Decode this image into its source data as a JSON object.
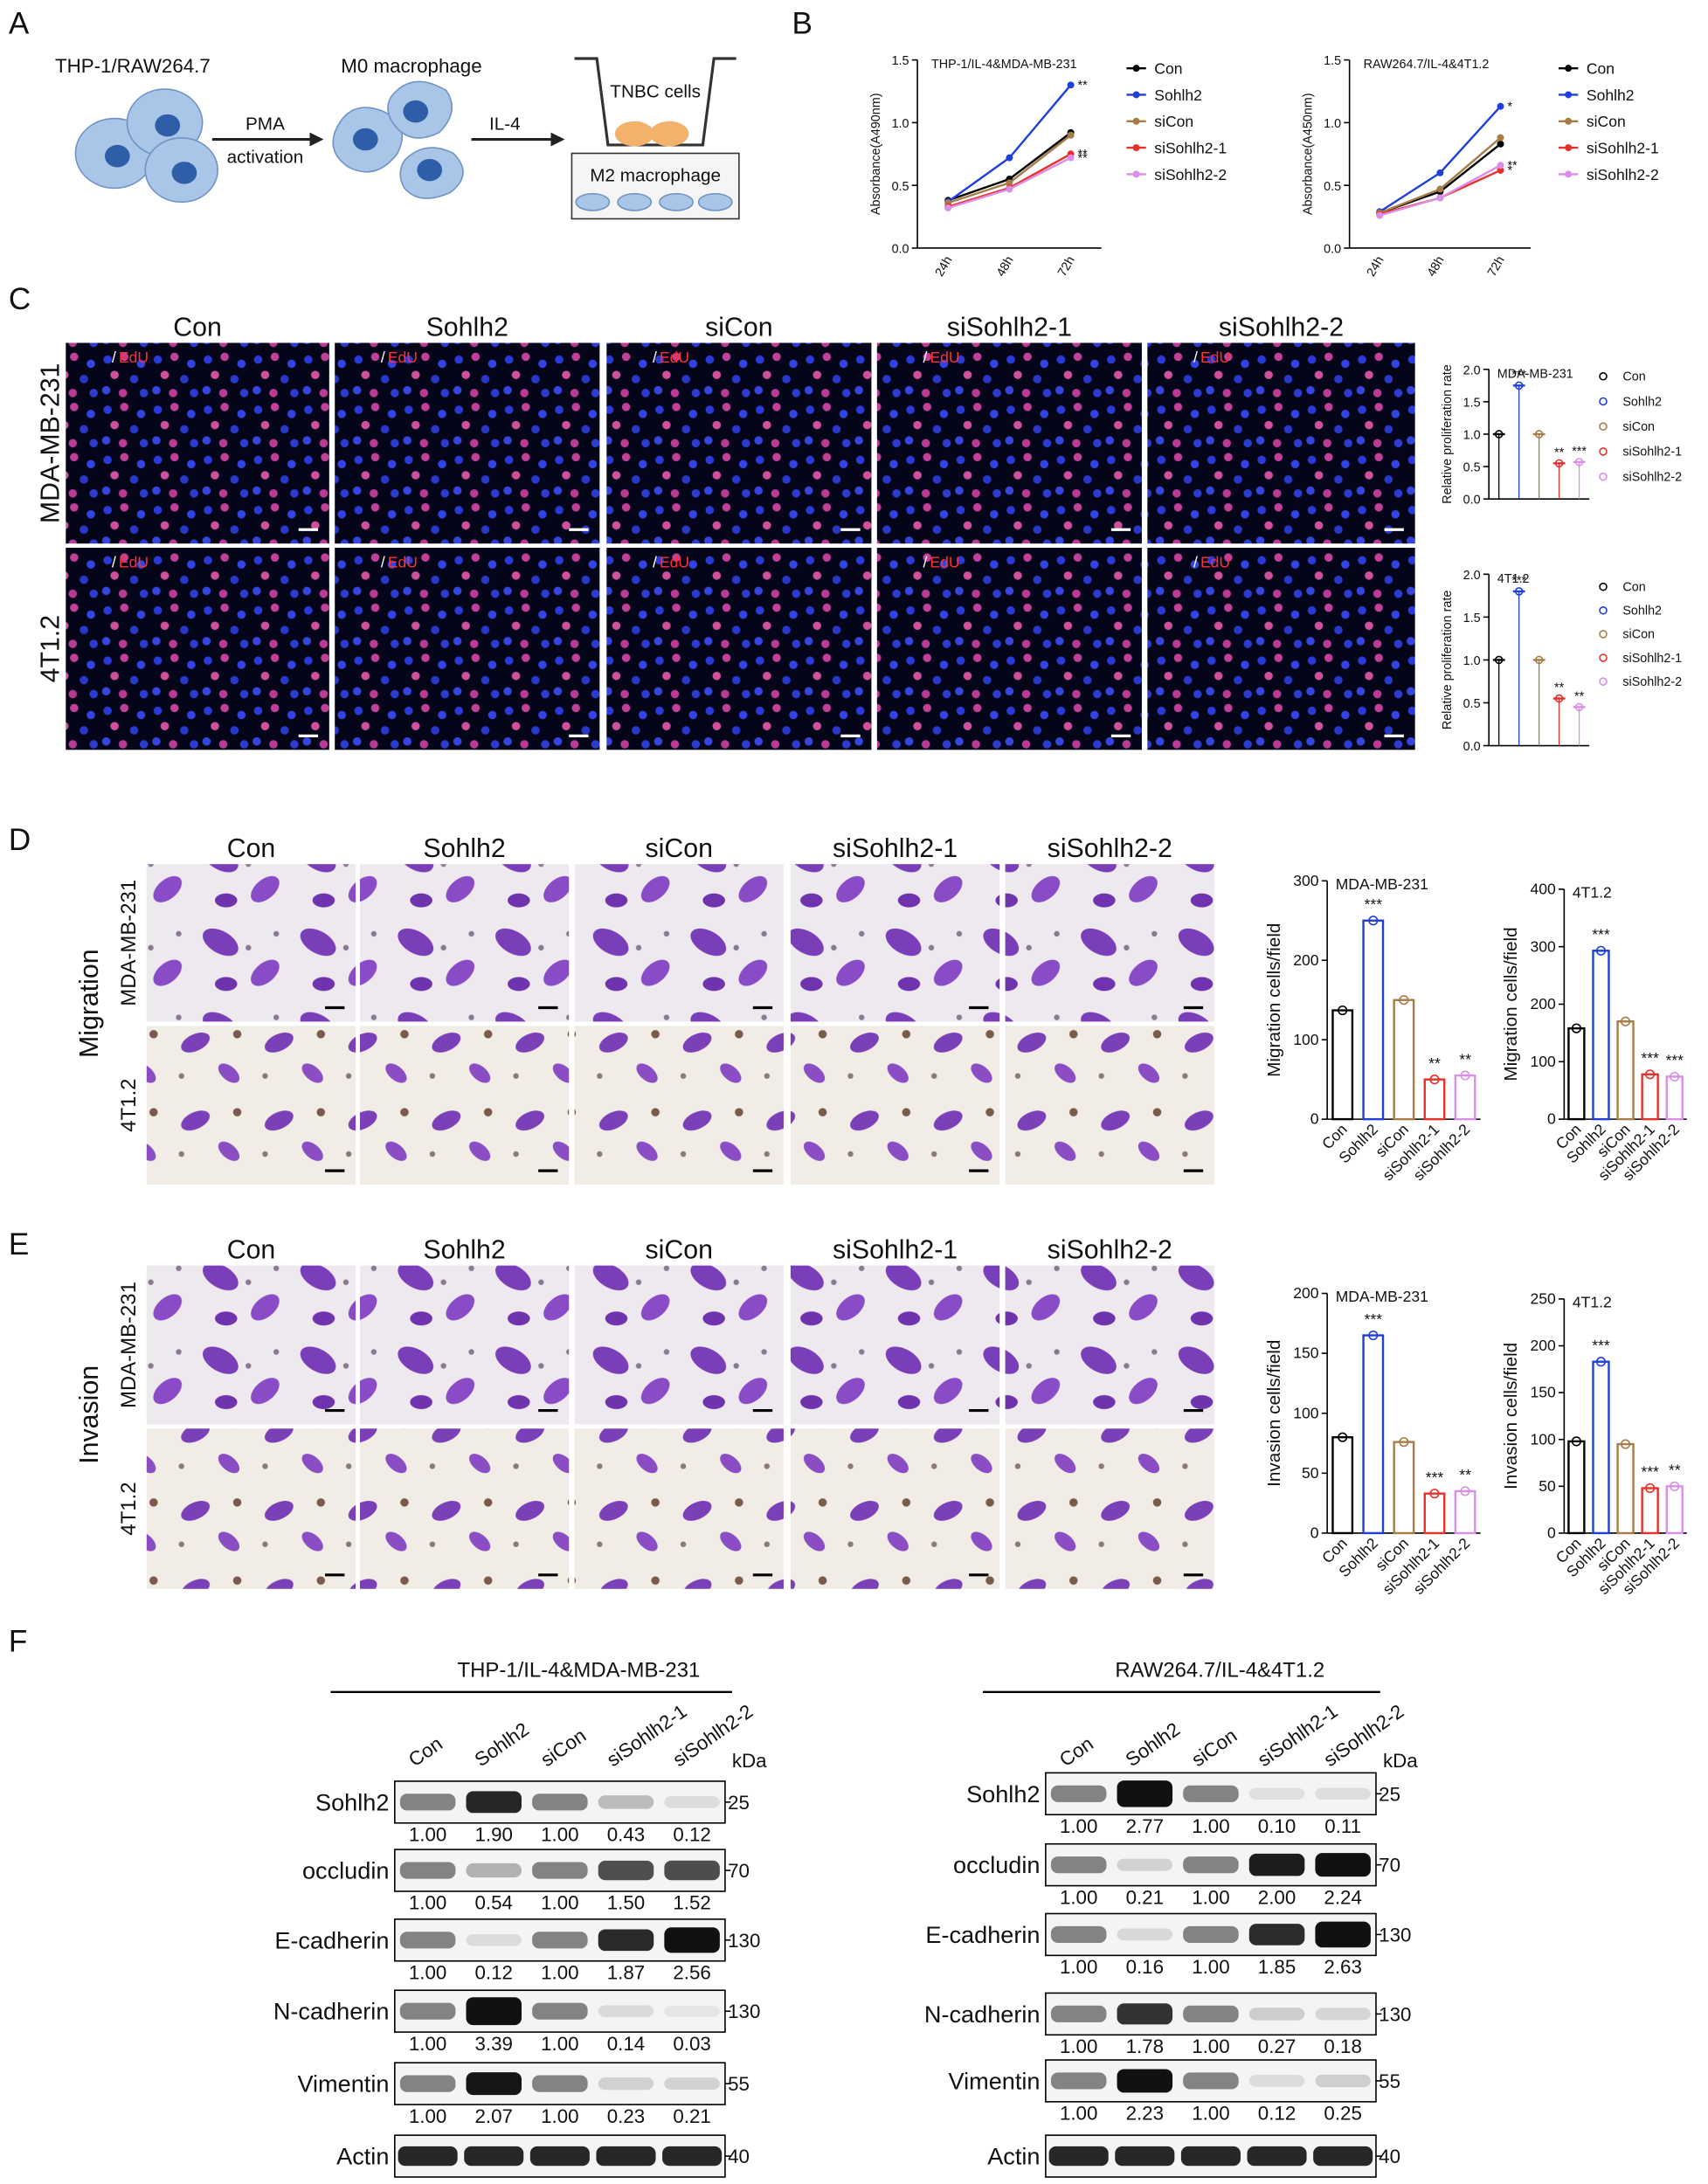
{
  "panel_a": {
    "label": "A",
    "source": "THP-1/RAW264.7",
    "m0": "M0 macrophage",
    "step1_top": "PMA",
    "step1_bottom": "activation",
    "step2": "IL-4",
    "upper": "TNBC cells",
    "lower": "M2 macrophage"
  },
  "panel_b": {
    "label": "B"
  },
  "panel_c": {
    "label": "C",
    "columns": [
      "Con",
      "Sohlh2",
      "siCon",
      "siSohlh2-1",
      "siSohlh2-2"
    ],
    "rows": [
      "MDA-MB-231",
      "4T1.2"
    ],
    "stain_prefix": "/",
    "stain": "EdU"
  },
  "panel_d": {
    "label": "D",
    "assay": "Migration",
    "columns": [
      "Con",
      "Sohlh2",
      "siCon",
      "siSohlh2-1",
      "siSohlh2-2"
    ],
    "rows": [
      "MDA-MB-231",
      "4T1.2"
    ]
  },
  "panel_e": {
    "label": "E",
    "assay": "Invasion",
    "columns": [
      "Con",
      "Sohlh2",
      "siCon",
      "siSohlh2-1",
      "siSohlh2-2"
    ],
    "rows": [
      "MDA-MB-231",
      "4T1.2"
    ]
  },
  "panel_f": {
    "label": "F",
    "unit": "kDa",
    "blots": [
      {
        "title": "THP-1/IL-4&MDA-MB-231",
        "lanes": [
          "Con",
          "Sohlh2",
          "siCon",
          "siSohlh2-1",
          "siSohlh2-2"
        ],
        "rows": [
          {
            "protein": "Sohlh2",
            "kda": "25",
            "ratios": [
              "1.00",
              "1.90",
              "1.00",
              "0.43",
              "0.12"
            ]
          },
          {
            "protein": "occludin",
            "kda": "70",
            "ratios": [
              "1.00",
              "0.54",
              "1.00",
              "1.50",
              "1.52"
            ]
          },
          {
            "protein": "E-cadherin",
            "kda": "130",
            "ratios": [
              "1.00",
              "0.12",
              "1.00",
              "1.87",
              "2.56"
            ]
          },
          {
            "protein": "N-cadherin",
            "kda": "130",
            "ratios": [
              "1.00",
              "3.39",
              "1.00",
              "0.14",
              "0.03"
            ]
          },
          {
            "protein": "Vimentin",
            "kda": "55",
            "ratios": [
              "1.00",
              "2.07",
              "1.00",
              "0.23",
              "0.21"
            ]
          },
          {
            "protein": "Actin",
            "kda": "40"
          }
        ]
      },
      {
        "title": "RAW264.7/IL-4&4T1.2",
        "lanes": [
          "Con",
          "Sohlh2",
          "siCon",
          "siSohlh2-1",
          "siSohlh2-2"
        ],
        "rows": [
          {
            "protein": "Sohlh2",
            "kda": "25",
            "ratios": [
              "1.00",
              "2.77",
              "1.00",
              "0.10",
              "0.11"
            ]
          },
          {
            "protein": "occludin",
            "kda": "70",
            "ratios": [
              "1.00",
              "0.21",
              "1.00",
              "2.00",
              "2.24"
            ]
          },
          {
            "protein": "E-cadherin",
            "kda": "130",
            "ratios": [
              "1.00",
              "0.16",
              "1.00",
              "1.85",
              "2.63"
            ]
          },
          {
            "protein": "N-cadherin",
            "kda": "130",
            "ratios": [
              "1.00",
              "1.78",
              "1.00",
              "0.27",
              "0.18"
            ]
          },
          {
            "protein": "Vimentin",
            "kda": "55",
            "ratios": [
              "1.00",
              "2.23",
              "1.00",
              "0.12",
              "0.25"
            ]
          },
          {
            "protein": "Actin",
            "kda": "40"
          }
        ]
      }
    ]
  },
  "chart_data": [
    {
      "type": "line",
      "title": "THP-1/IL-4&MDA-MB-231",
      "y_label": "Absorbance(A490nm)",
      "categories": [
        "24h",
        "48h",
        "72h"
      ],
      "ylim": [
        0,
        1.5
      ],
      "yticks": [
        {
          "value": 0,
          "label": "0.0"
        },
        0.5,
        {
          "value": 1,
          "label": "1.0"
        },
        1.5
      ],
      "series": [
        {
          "name": "Con",
          "color": "#000000",
          "values": [
            0.38,
            0.55,
            0.92
          ]
        },
        {
          "name": "Sohlh2",
          "color": "#1f3fd8",
          "values": [
            0.37,
            0.72,
            1.3
          ],
          "significance": [
            null,
            null,
            "**"
          ]
        },
        {
          "name": "siCon",
          "color": "#a67c47",
          "values": [
            0.36,
            0.52,
            0.9
          ]
        },
        {
          "name": "siSohlh2-1",
          "color": "#e8302a",
          "values": [
            0.33,
            0.48,
            0.75
          ],
          "significance": [
            null,
            null,
            "**"
          ]
        },
        {
          "name": "siSohlh2-2",
          "color": "#d98ee8",
          "values": [
            0.32,
            0.47,
            0.72
          ],
          "significance": [
            null,
            null,
            "**"
          ]
        }
      ]
    },
    {
      "type": "line",
      "title": "RAW264.7/IL-4&4T1.2",
      "y_label": "Absorbance(A450nm)",
      "categories": [
        "24h",
        "48h",
        "72h"
      ],
      "ylim": [
        0,
        1.5
      ],
      "yticks": [
        {
          "value": 0,
          "label": "0.0"
        },
        0.5,
        {
          "value": 1,
          "label": "1.0"
        },
        1.5
      ],
      "series": [
        {
          "name": "Con",
          "color": "#000000",
          "values": [
            0.28,
            0.45,
            0.83
          ]
        },
        {
          "name": "Sohlh2",
          "color": "#1f3fd8",
          "values": [
            0.29,
            0.6,
            1.13
          ],
          "significance": [
            null,
            null,
            "*"
          ]
        },
        {
          "name": "siCon",
          "color": "#a67c47",
          "values": [
            0.28,
            0.47,
            0.88
          ]
        },
        {
          "name": "siSohlh2-1",
          "color": "#e8302a",
          "values": [
            0.27,
            0.4,
            0.62
          ],
          "significance": [
            null,
            null,
            "*"
          ]
        },
        {
          "name": "siSohlh2-2",
          "color": "#d98ee8",
          "values": [
            0.26,
            0.4,
            0.66
          ],
          "significance": [
            null,
            null,
            "**"
          ]
        }
      ]
    },
    {
      "type": "dot",
      "title": "MDA-MB-231",
      "y_label": "Relative proliferation rate",
      "categories": [
        "Con",
        "Sohlh2",
        "siCon",
        "siSohlh2-1",
        "siSohlh2-2"
      ],
      "colors": [
        "#000000",
        "#1f3fd8",
        "#a67c47",
        "#e8302a",
        "#d98ee8"
      ],
      "values": [
        1.0,
        1.75,
        1.0,
        0.55,
        0.57
      ],
      "significance": [
        null,
        "***",
        null,
        "**",
        "***"
      ],
      "ylim": [
        0,
        2
      ],
      "yticks": [
        {
          "value": 0,
          "label": "0.0"
        },
        0.5,
        {
          "value": 1,
          "label": "1.0"
        },
        1.5,
        {
          "value": 2,
          "label": "2.0"
        }
      ]
    },
    {
      "type": "dot",
      "title": "4T1.2",
      "y_label": "Relative proliferation rate",
      "categories": [
        "Con",
        "Sohlh2",
        "siCon",
        "siSohlh2-1",
        "siSohlh2-2"
      ],
      "colors": [
        "#000000",
        "#1f3fd8",
        "#a67c47",
        "#e8302a",
        "#d98ee8"
      ],
      "values": [
        1.0,
        1.8,
        1.0,
        0.55,
        0.45
      ],
      "significance": [
        null,
        "***",
        null,
        "**",
        "**"
      ],
      "ylim": [
        0,
        2
      ],
      "yticks": [
        {
          "value": 0,
          "label": "0.0"
        },
        0.5,
        {
          "value": 1,
          "label": "1.0"
        },
        1.5,
        {
          "value": 2,
          "label": "2.0"
        }
      ]
    },
    {
      "type": "bar",
      "title": "MDA-MB-231",
      "y_label": "Migration cells/field",
      "categories": [
        "Con",
        "Sohlh2",
        "siCon",
        "siSohlh2-1",
        "siSohlh2-2"
      ],
      "colors": [
        "#000000",
        "#1f3fd8",
        "#a67c47",
        "#e8302a",
        "#d98ee8"
      ],
      "values": [
        137,
        250,
        150,
        50,
        55
      ],
      "significance": [
        null,
        "***",
        null,
        "**",
        "**"
      ],
      "ylim": [
        0,
        300
      ],
      "yticks": [
        0,
        100,
        200,
        300
      ]
    },
    {
      "type": "bar",
      "title": "4T1.2",
      "y_label": "Migration cells/field",
      "categories": [
        "Con",
        "Sohlh2",
        "siCon",
        "siSohlh2-1",
        "siSohlh2-2"
      ],
      "colors": [
        "#000000",
        "#1f3fd8",
        "#a67c47",
        "#e8302a",
        "#d98ee8"
      ],
      "values": [
        158,
        293,
        170,
        78,
        74
      ],
      "significance": [
        null,
        "***",
        null,
        "***",
        "***"
      ],
      "ylim": [
        0,
        400
      ],
      "yticks": [
        0,
        100,
        200,
        300,
        400
      ]
    },
    {
      "type": "bar",
      "title": "MDA-MB-231",
      "y_label": "Invasion cells/field",
      "categories": [
        "Con",
        "Sohlh2",
        "siCon",
        "siSohlh2-1",
        "siSohlh2-2"
      ],
      "colors": [
        "#000000",
        "#1f3fd8",
        "#a67c47",
        "#e8302a",
        "#d98ee8"
      ],
      "values": [
        80,
        165,
        76,
        33,
        35
      ],
      "significance": [
        null,
        "***",
        null,
        "***",
        "**"
      ],
      "ylim": [
        0,
        200
      ],
      "yticks": [
        0,
        50,
        100,
        150,
        200
      ]
    },
    {
      "type": "bar",
      "title": "4T1.2",
      "y_label": "Invasion cells/field",
      "categories": [
        "Con",
        "Sohlh2",
        "siCon",
        "siSohlh2-1",
        "siSohlh2-2"
      ],
      "colors": [
        "#000000",
        "#1f3fd8",
        "#a67c47",
        "#e8302a",
        "#d98ee8"
      ],
      "values": [
        98,
        183,
        95,
        48,
        50
      ],
      "significance": [
        null,
        "***",
        null,
        "***",
        "**"
      ],
      "ylim": [
        0,
        250
      ],
      "yticks": [
        0,
        50,
        100,
        150,
        200,
        250
      ]
    }
  ]
}
